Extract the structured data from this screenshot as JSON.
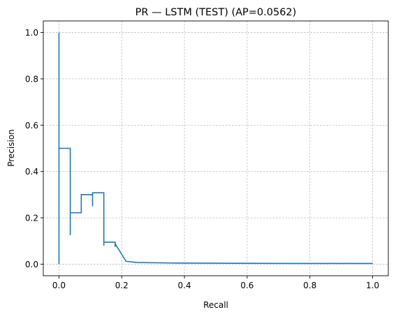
{
  "chart_data": {
    "type": "line",
    "title": "PR — LSTM (TEST) (AP=0.0562)",
    "xlabel": "Recall",
    "ylabel": "Precision",
    "xlim": [
      -0.05,
      1.05
    ],
    "ylim": [
      -0.05,
      1.05
    ],
    "xticks": [
      0.0,
      0.2,
      0.4,
      0.6,
      0.8,
      1.0
    ],
    "xtick_labels": [
      "0.0",
      "0.2",
      "0.4",
      "0.6",
      "0.8",
      "1.0"
    ],
    "yticks": [
      0.0,
      0.2,
      0.4,
      0.6,
      0.8,
      1.0
    ],
    "ytick_labels": [
      "0.0",
      "0.2",
      "0.4",
      "0.6",
      "0.8",
      "1.0"
    ],
    "grid": true,
    "series_color": "#1f77b4",
    "series": [
      {
        "x": [
          0.0,
          0.0,
          0.0,
          0.0,
          0.036,
          0.036,
          0.036,
          0.036,
          0.071,
          0.071,
          0.107,
          0.107,
          0.107,
          0.107,
          0.143,
          0.143,
          0.143,
          0.143,
          0.179,
          0.179,
          0.179,
          0.179,
          0.214,
          0.214,
          0.25,
          0.25,
          0.357,
          0.357,
          0.5,
          0.5,
          0.75,
          0.75,
          1.0
        ],
        "y": [
          0.0,
          1.0,
          0.5,
          0.5,
          0.5,
          0.125,
          0.222,
          0.222,
          0.222,
          0.3,
          0.3,
          0.25,
          0.308,
          0.308,
          0.308,
          0.08,
          0.095,
          0.095,
          0.095,
          0.075,
          0.088,
          0.088,
          0.012,
          0.012,
          0.007,
          0.007,
          0.005,
          0.005,
          0.004,
          0.004,
          0.003,
          0.003,
          0.003
        ]
      }
    ]
  }
}
